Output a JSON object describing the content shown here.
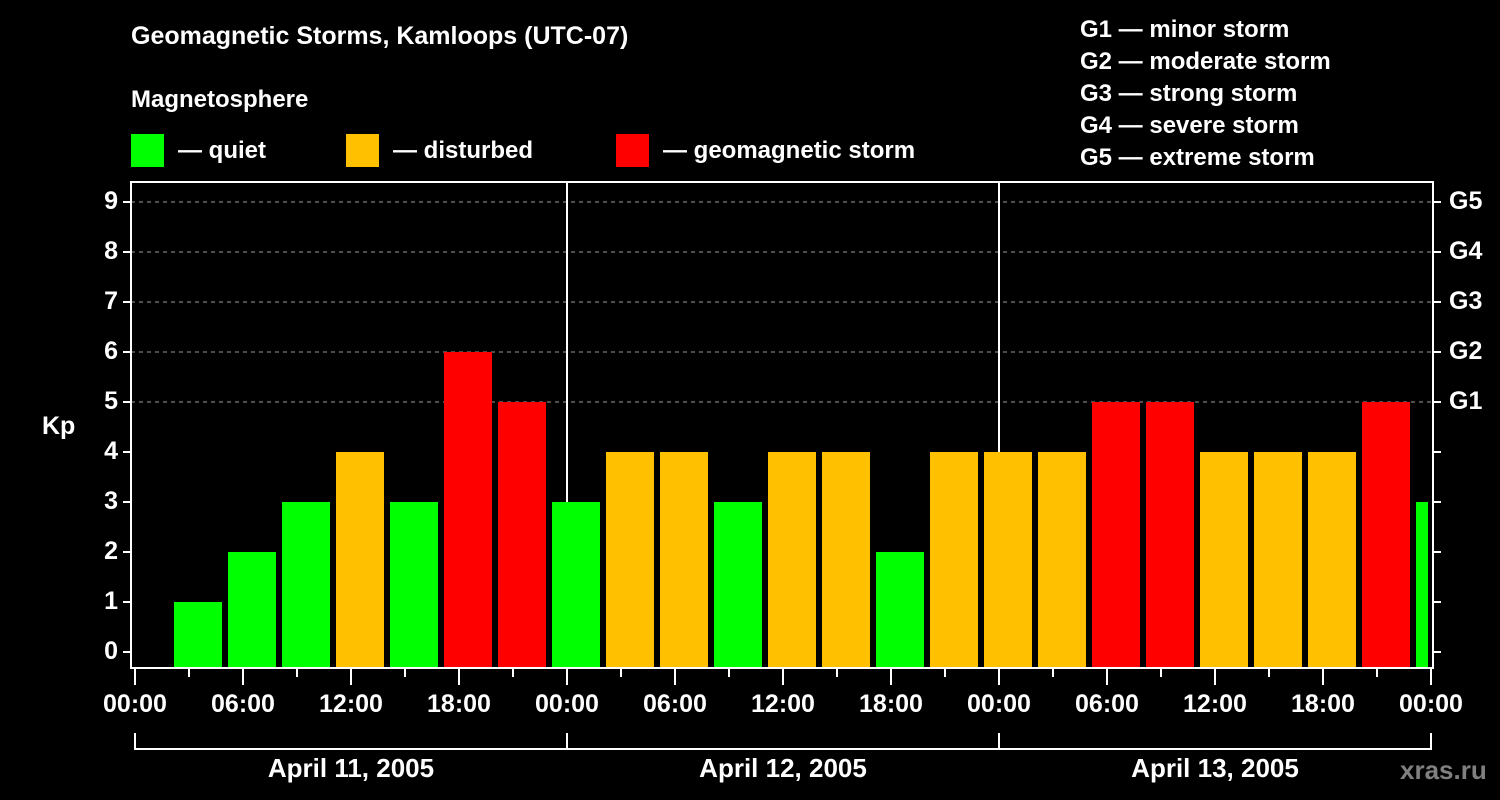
{
  "title": "Geomagnetic Storms, Kamloops (UTC-07)",
  "subtitle": "Magnetosphere",
  "legend": [
    {
      "label": "— quiet",
      "color": "#00ff00"
    },
    {
      "label": "— disturbed",
      "color": "#ffc000"
    },
    {
      "label": "— geomagnetic storm",
      "color": "#ff0000"
    }
  ],
  "g_legend": [
    "G1 — minor storm",
    "G2 — moderate storm",
    "G3 — strong storm",
    "G4 — severe storm",
    "G5 — extreme storm"
  ],
  "y_axis": {
    "label": "Kp",
    "ticks": [
      "0",
      "1",
      "2",
      "3",
      "4",
      "5",
      "6",
      "7",
      "8",
      "9"
    ]
  },
  "g_axis": {
    "ticks": [
      {
        "kp": 5,
        "label": "G1"
      },
      {
        "kp": 6,
        "label": "G2"
      },
      {
        "kp": 7,
        "label": "G3"
      },
      {
        "kp": 8,
        "label": "G4"
      },
      {
        "kp": 9,
        "label": "G5"
      }
    ]
  },
  "x_axis": {
    "tick_labels": [
      "00:00",
      "06:00",
      "12:00",
      "18:00",
      "00:00",
      "06:00",
      "12:00",
      "18:00",
      "00:00",
      "06:00",
      "12:00",
      "18:00",
      "00:00"
    ],
    "dates": [
      "April 11, 2005",
      "April 12, 2005",
      "April 13, 2005"
    ]
  },
  "watermark": "xras.ru",
  "chart_data": {
    "type": "bar",
    "title": "Geomagnetic Storms, Kamloops (UTC-07)",
    "xlabel": "",
    "ylabel": "Kp",
    "ylim": [
      0,
      9
    ],
    "secondary_y_labels": {
      "5": "G1",
      "6": "G2",
      "7": "G3",
      "8": "G4",
      "9": "G5"
    },
    "grid": "dashed horizontal at Kp 5-9",
    "legend_position": "top",
    "colors": {
      "quiet": "#00ff00",
      "disturbed": "#ffc000",
      "storm": "#ff0000"
    },
    "bar_start_hours": [
      2,
      5,
      8,
      11,
      14,
      17,
      20,
      23,
      26,
      29,
      32,
      35,
      38,
      41,
      44,
      47,
      50,
      53,
      56,
      59,
      62,
      65,
      68,
      71
    ],
    "categories": [
      "Apr 11 02:00",
      "Apr 11 05:00",
      "Apr 11 08:00",
      "Apr 11 11:00",
      "Apr 11 14:00",
      "Apr 11 17:00",
      "Apr 11 20:00",
      "Apr 11 23:00",
      "Apr 12 02:00",
      "Apr 12 05:00",
      "Apr 12 08:00",
      "Apr 12 11:00",
      "Apr 12 14:00",
      "Apr 12 17:00",
      "Apr 12 20:00",
      "Apr 12 23:00",
      "Apr 13 02:00",
      "Apr 13 05:00",
      "Apr 13 08:00",
      "Apr 13 11:00",
      "Apr 13 14:00",
      "Apr 13 17:00",
      "Apr 13 20:00",
      "Apr 13 23:00"
    ],
    "values": [
      1,
      2,
      3,
      4,
      3,
      6,
      5,
      3,
      4,
      4,
      3,
      4,
      4,
      2,
      4,
      4,
      4,
      5,
      5,
      4,
      4,
      4,
      5,
      3
    ]
  }
}
